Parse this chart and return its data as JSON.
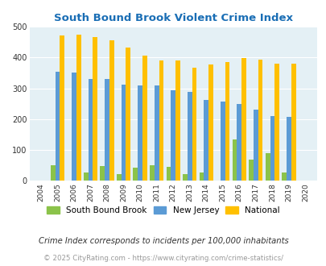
{
  "title": "South Bound Brook Violent Crime Index",
  "years": [
    2004,
    2005,
    2006,
    2007,
    2008,
    2009,
    2010,
    2011,
    2012,
    2013,
    2014,
    2015,
    2016,
    2017,
    2018,
    2019,
    2020
  ],
  "south_bound_brook": [
    0,
    50,
    0,
    27,
    47,
    22,
    43,
    50,
    46,
    22,
    27,
    0,
    133,
    68,
    90,
    26,
    0
  ],
  "new_jersey": [
    0,
    355,
    350,
    330,
    330,
    312,
    310,
    310,
    293,
    288,
    262,
    256,
    248,
    231,
    211,
    207,
    0
  ],
  "national": [
    0,
    470,
    474,
    467,
    455,
    432,
    405,
    389,
    389,
    368,
    378,
    384,
    398,
    394,
    381,
    379,
    0
  ],
  "color_sbr": "#8bc34a",
  "color_nj": "#5b9bd5",
  "color_nat": "#ffc000",
  "background_color": "#e4f0f5",
  "title_color": "#1a6eb5",
  "ylim": [
    0,
    500
  ],
  "yticks": [
    0,
    100,
    200,
    300,
    400,
    500
  ],
  "subtitle": "Crime Index corresponds to incidents per 100,000 inhabitants",
  "footer": "© 2025 CityRating.com - https://www.cityrating.com/crime-statistics/",
  "legend_labels": [
    "South Bound Brook",
    "New Jersey",
    "National"
  ]
}
